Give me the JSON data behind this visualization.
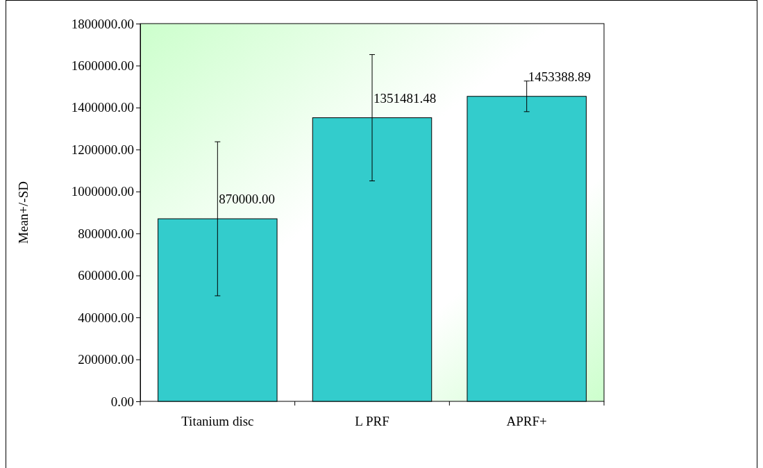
{
  "chart_data": {
    "type": "bar",
    "ylabel": "Mean+/-SD",
    "categories": [
      "Titanium disc",
      "L PRF",
      "APRF+"
    ],
    "values": [
      870000.0,
      1351481.48,
      1453388.89
    ],
    "errors": [
      367000,
      301000,
      73000
    ],
    "value_labels": [
      "870000.00",
      "1351481.48",
      "1453388.89"
    ],
    "color": "#33cccc",
    "ylim": [
      0,
      1800000
    ],
    "yticks": [
      {
        "value": 0,
        "label": "0.00"
      },
      {
        "value": 200000,
        "label": "200000.00"
      },
      {
        "value": 400000,
        "label": "400000.00"
      },
      {
        "value": 600000,
        "label": "600000.00"
      },
      {
        "value": 800000,
        "label": "800000.00"
      },
      {
        "value": 1000000,
        "label": "1000000.00"
      },
      {
        "value": 1200000,
        "label": "1200000.00"
      },
      {
        "value": 1400000,
        "label": "1400000.00"
      },
      {
        "value": 1600000,
        "label": "1600000.00"
      },
      {
        "value": 1800000,
        "label": "1800000.00"
      }
    ]
  }
}
